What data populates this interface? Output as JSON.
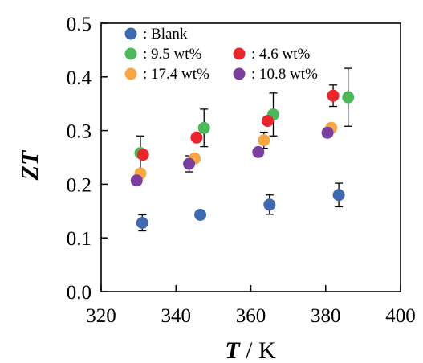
{
  "chart_data": {
    "type": "scatter",
    "title": "",
    "xlabel_var": "T",
    "xlabel_unit": " / K",
    "ylabel": "ZT",
    "xlim": [
      320,
      400
    ],
    "ylim": [
      0.0,
      0.5
    ],
    "xticks": [
      "320",
      "340",
      "360",
      "380",
      "400"
    ],
    "yticks": [
      "0.0",
      "0.1",
      "0.2",
      "0.3",
      "0.4",
      "0.5"
    ],
    "grid": false,
    "legend_position": "top",
    "series": [
      {
        "name": ": Blank",
        "color": "#4169b0",
        "x": [
          331.0,
          346.5,
          365.0,
          383.5
        ],
        "y": [
          0.128,
          0.143,
          0.162,
          0.18
        ],
        "err": [
          0.015,
          0.0,
          0.018,
          0.022
        ]
      },
      {
        "name": ": 9.5 wt%",
        "color": "#4cb85a",
        "x": [
          330.5,
          347.5,
          366.0,
          386.0
        ],
        "y": [
          0.258,
          0.305,
          0.33,
          0.362
        ],
        "err": [
          0.032,
          0.035,
          0.04,
          0.054
        ]
      },
      {
        "name": ": 4.6 wt%",
        "color": "#e8262b",
        "x": [
          331.2,
          345.5,
          364.5,
          382.0
        ],
        "y": [
          0.255,
          0.287,
          0.318,
          0.365
        ],
        "err": [
          0.0,
          0.0,
          0.0,
          0.02
        ]
      },
      {
        "name": ": 17.4 wt%",
        "color": "#f7a643",
        "x": [
          330.5,
          345.0,
          363.5,
          381.5
        ],
        "y": [
          0.22,
          0.248,
          0.282,
          0.305
        ],
        "err": [
          0.0,
          0.0,
          0.015,
          0.0
        ]
      },
      {
        "name": ": 10.8 wt%",
        "color": "#7a3f9e",
        "x": [
          329.5,
          343.5,
          362.0,
          380.5
        ],
        "y": [
          0.207,
          0.238,
          0.26,
          0.296
        ],
        "err": [
          0.0,
          0.015,
          0.0,
          0.0
        ]
      }
    ]
  }
}
